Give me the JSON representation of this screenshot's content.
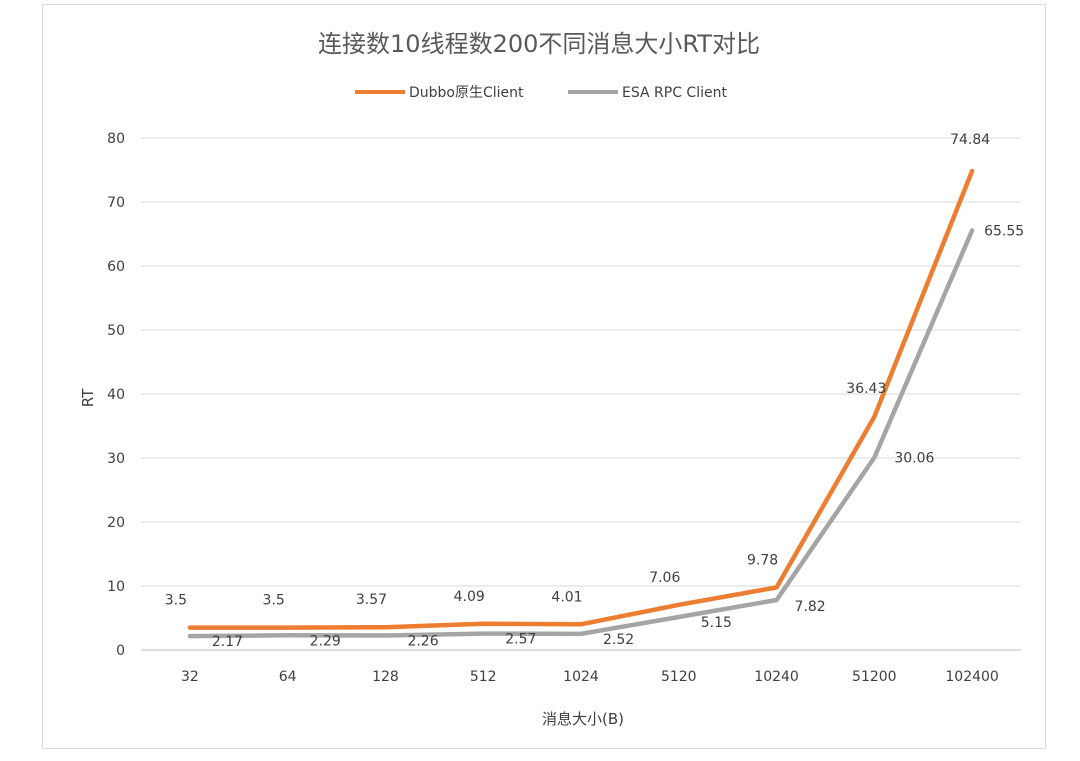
{
  "chart_data": {
    "type": "line",
    "title": "连接数10线程数200不同消息大小RT对比",
    "xlabel": "消息大小(B)",
    "ylabel": "RT",
    "categories": [
      "32",
      "64",
      "128",
      "512",
      "1024",
      "5120",
      "10240",
      "51200",
      "102400"
    ],
    "ylim": [
      0,
      80
    ],
    "yticks": [
      "0",
      "10",
      "20",
      "30",
      "40",
      "50",
      "60",
      "70",
      "80"
    ],
    "grid": true,
    "legend_position": "top",
    "series": [
      {
        "name": "Dubbo原生Client",
        "color": "#ed7d31",
        "values": [
          3.5,
          3.5,
          3.57,
          4.09,
          4.01,
          7.06,
          9.78,
          36.43,
          74.84
        ],
        "labels": [
          "3.5",
          "3.5",
          "3.57",
          "4.09",
          "4.01",
          "7.06",
          "9.78",
          "36.43",
          "74.84"
        ]
      },
      {
        "name": "ESA RPC Client",
        "color": "#a5a5a5",
        "values": [
          2.17,
          2.29,
          2.26,
          2.57,
          2.52,
          5.15,
          7.82,
          30.06,
          65.55
        ],
        "labels": [
          "2.17",
          "2.29",
          "2.26",
          "2.57",
          "2.52",
          "5.15",
          "7.82",
          "30.06",
          "65.55"
        ]
      }
    ]
  }
}
